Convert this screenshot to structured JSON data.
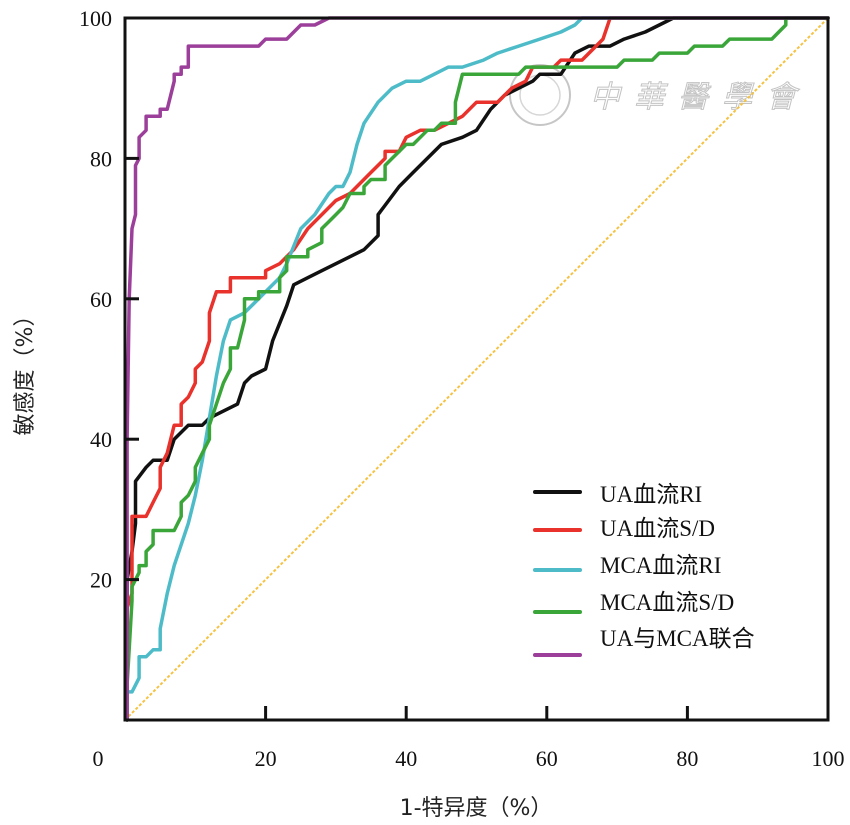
{
  "chart_data": {
    "type": "line",
    "title": "",
    "xlabel": "1-特异度（%）",
    "ylabel": "敏感度（%）",
    "xlim": [
      0,
      100
    ],
    "ylim": [
      0,
      100
    ],
    "x_ticks": [
      "0",
      "20",
      "40",
      "60",
      "80",
      "100"
    ],
    "y_ticks": [
      "20",
      "40",
      "60",
      "80",
      "100"
    ],
    "grid": false,
    "legend_position": "bottom-right",
    "reference_line": {
      "name": "diagonal",
      "color": "#f5c242",
      "points": [
        [
          0,
          0
        ],
        [
          100,
          100
        ]
      ]
    },
    "series": [
      {
        "name": "UA血流RI",
        "color": "#111111",
        "points": [
          [
            0.3,
            0
          ],
          [
            0.3,
            20
          ],
          [
            1,
            24
          ],
          [
            1.5,
            28
          ],
          [
            1.5,
            34
          ],
          [
            3,
            36
          ],
          [
            4,
            37
          ],
          [
            6,
            37
          ],
          [
            7,
            40
          ],
          [
            9,
            42
          ],
          [
            11,
            42
          ],
          [
            12,
            43
          ],
          [
            14,
            44
          ],
          [
            16,
            45
          ],
          [
            17,
            48
          ],
          [
            18,
            49
          ],
          [
            20,
            50
          ],
          [
            21,
            54
          ],
          [
            23,
            59
          ],
          [
            24,
            62
          ],
          [
            26,
            63
          ],
          [
            28,
            64
          ],
          [
            30,
            65
          ],
          [
            32,
            66
          ],
          [
            34,
            67
          ],
          [
            36,
            69
          ],
          [
            36,
            72
          ],
          [
            39,
            76
          ],
          [
            41,
            78
          ],
          [
            43,
            80
          ],
          [
            45,
            82
          ],
          [
            48,
            83
          ],
          [
            50,
            84
          ],
          [
            52,
            87
          ],
          [
            54,
            89
          ],
          [
            56,
            90
          ],
          [
            58,
            91
          ],
          [
            59,
            92
          ],
          [
            62,
            92
          ],
          [
            64,
            95
          ],
          [
            66,
            96
          ],
          [
            69,
            96
          ],
          [
            71,
            97
          ],
          [
            74,
            98
          ],
          [
            76,
            99
          ],
          [
            78,
            100
          ],
          [
            100,
            100
          ]
        ]
      },
      {
        "name": "UA血流S/D",
        "color": "#e8322b",
        "points": [
          [
            0.3,
            0
          ],
          [
            0.3,
            16
          ],
          [
            1,
            18
          ],
          [
            1,
            29
          ],
          [
            3,
            29
          ],
          [
            4,
            31
          ],
          [
            5,
            33
          ],
          [
            5,
            36
          ],
          [
            6,
            38
          ],
          [
            7,
            42
          ],
          [
            8,
            42
          ],
          [
            8,
            45
          ],
          [
            9,
            46
          ],
          [
            10,
            48
          ],
          [
            10,
            50
          ],
          [
            11,
            51
          ],
          [
            12,
            54
          ],
          [
            12,
            58
          ],
          [
            13,
            61
          ],
          [
            15,
            61
          ],
          [
            15,
            63
          ],
          [
            20,
            63
          ],
          [
            20,
            64
          ],
          [
            22,
            65
          ],
          [
            24,
            67
          ],
          [
            26,
            70
          ],
          [
            29,
            73
          ],
          [
            30,
            74
          ],
          [
            32,
            75
          ],
          [
            35,
            78
          ],
          [
            37,
            80
          ],
          [
            37,
            81
          ],
          [
            39,
            81
          ],
          [
            40,
            83
          ],
          [
            42,
            84
          ],
          [
            44,
            84
          ],
          [
            46,
            85
          ],
          [
            48,
            86
          ],
          [
            50,
            88
          ],
          [
            53,
            88
          ],
          [
            55,
            90
          ],
          [
            57,
            91
          ],
          [
            58,
            93
          ],
          [
            60,
            93
          ],
          [
            61,
            93
          ],
          [
            62,
            94
          ],
          [
            65,
            94
          ],
          [
            67,
            96
          ],
          [
            68,
            97
          ],
          [
            69,
            100
          ],
          [
            100,
            100
          ]
        ]
      },
      {
        "name": "MCA血流RI",
        "color": "#4dbcc8",
        "points": [
          [
            0.3,
            0
          ],
          [
            0.3,
            4
          ],
          [
            1,
            4
          ],
          [
            2,
            6
          ],
          [
            2,
            9
          ],
          [
            3,
            9
          ],
          [
            4,
            10
          ],
          [
            5,
            10
          ],
          [
            5,
            13
          ],
          [
            6,
            18
          ],
          [
            7,
            22
          ],
          [
            9,
            28
          ],
          [
            10,
            32
          ],
          [
            11,
            37
          ],
          [
            12,
            43
          ],
          [
            13,
            49
          ],
          [
            14,
            54
          ],
          [
            15,
            57
          ],
          [
            17,
            58
          ],
          [
            20,
            61
          ],
          [
            22,
            63
          ],
          [
            23,
            65
          ],
          [
            25,
            70
          ],
          [
            27,
            72
          ],
          [
            29,
            75
          ],
          [
            30,
            76
          ],
          [
            31,
            76
          ],
          [
            32,
            78
          ],
          [
            33,
            82
          ],
          [
            34,
            85
          ],
          [
            36,
            88
          ],
          [
            38,
            90
          ],
          [
            40,
            91
          ],
          [
            42,
            91
          ],
          [
            44,
            92
          ],
          [
            46,
            93
          ],
          [
            48,
            93
          ],
          [
            51,
            94
          ],
          [
            53,
            95
          ],
          [
            56,
            96
          ],
          [
            59,
            97
          ],
          [
            62,
            98
          ],
          [
            64,
            99
          ],
          [
            65,
            100
          ],
          [
            100,
            100
          ]
        ]
      },
      {
        "name": "MCA血流S/D",
        "color": "#3aa63a",
        "points": [
          [
            0.3,
            0
          ],
          [
            0.3,
            5
          ],
          [
            1,
            17
          ],
          [
            1,
            19
          ],
          [
            2,
            21
          ],
          [
            2,
            22
          ],
          [
            3,
            22
          ],
          [
            3,
            24
          ],
          [
            4,
            25
          ],
          [
            4,
            27
          ],
          [
            7,
            27
          ],
          [
            8,
            29
          ],
          [
            8,
            31
          ],
          [
            9,
            32
          ],
          [
            10,
            34
          ],
          [
            10,
            36
          ],
          [
            11,
            38
          ],
          [
            12,
            40
          ],
          [
            12,
            42
          ],
          [
            13,
            45
          ],
          [
            14,
            48
          ],
          [
            15,
            50
          ],
          [
            15,
            53
          ],
          [
            16,
            53
          ],
          [
            17,
            57
          ],
          [
            17,
            60
          ],
          [
            19,
            60
          ],
          [
            19,
            61
          ],
          [
            22,
            61
          ],
          [
            22,
            63
          ],
          [
            23,
            64
          ],
          [
            23,
            66
          ],
          [
            26,
            66
          ],
          [
            26,
            67
          ],
          [
            28,
            68
          ],
          [
            28,
            70
          ],
          [
            29,
            71
          ],
          [
            30,
            72
          ],
          [
            31,
            73
          ],
          [
            32,
            75
          ],
          [
            34,
            75
          ],
          [
            34,
            76
          ],
          [
            35,
            77
          ],
          [
            37,
            77
          ],
          [
            37,
            79
          ],
          [
            38,
            80
          ],
          [
            39,
            81
          ],
          [
            40,
            82
          ],
          [
            41,
            82
          ],
          [
            42,
            83
          ],
          [
            43,
            84
          ],
          [
            44,
            84
          ],
          [
            45,
            85
          ],
          [
            47,
            85
          ],
          [
            47,
            88
          ],
          [
            48,
            92
          ],
          [
            56,
            92
          ],
          [
            57,
            93
          ],
          [
            70,
            93
          ],
          [
            71,
            94
          ],
          [
            75,
            94
          ],
          [
            76,
            95
          ],
          [
            80,
            95
          ],
          [
            81,
            96
          ],
          [
            85,
            96
          ],
          [
            86,
            97
          ],
          [
            92,
            97
          ],
          [
            93,
            98
          ],
          [
            94,
            99
          ],
          [
            94,
            100
          ],
          [
            100,
            100
          ]
        ]
      },
      {
        "name": "UA与MCA联合",
        "color": "#9b3f9a",
        "points": [
          [
            0.3,
            0
          ],
          [
            0.3,
            40
          ],
          [
            0.6,
            60
          ],
          [
            1,
            70
          ],
          [
            1.5,
            72
          ],
          [
            1.5,
            79
          ],
          [
            2,
            80
          ],
          [
            2,
            83
          ],
          [
            3,
            84
          ],
          [
            3,
            86
          ],
          [
            5,
            86
          ],
          [
            5,
            87
          ],
          [
            6,
            87
          ],
          [
            7,
            91
          ],
          [
            7,
            92
          ],
          [
            8,
            92
          ],
          [
            8,
            93
          ],
          [
            9,
            93
          ],
          [
            9,
            96
          ],
          [
            19,
            96
          ],
          [
            20,
            97
          ],
          [
            23,
            97
          ],
          [
            25,
            99
          ],
          [
            27,
            99
          ],
          [
            29,
            100
          ],
          [
            100,
            100
          ]
        ]
      }
    ]
  },
  "watermark": {
    "text": "中華醫學會",
    "emblem": "society-emblem"
  }
}
